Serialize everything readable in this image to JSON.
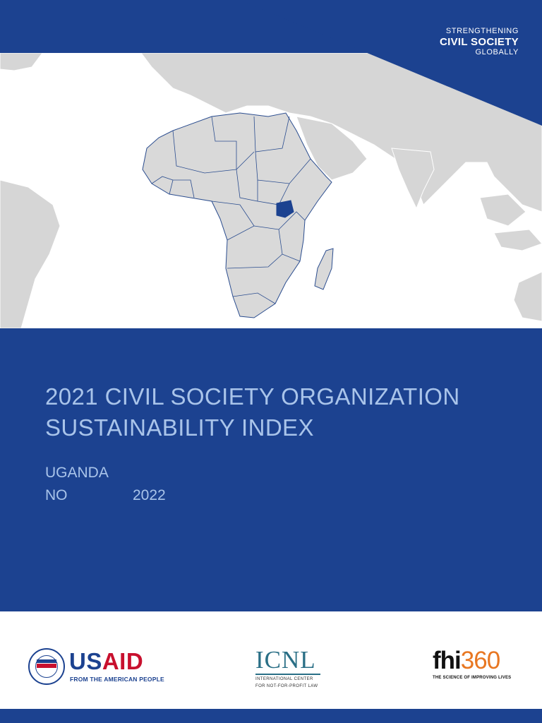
{
  "tagline": {
    "line1": "STRENGTHENING",
    "line2": "CIVIL SOCIETY",
    "line3": "GLOBALLY"
  },
  "map": {
    "highlighted_country": "Uganda",
    "highlight_color": "#1c4290",
    "land_color": "#d6d6d6",
    "africa_color": "#d9d9d9",
    "border_color": "#2b4d8f"
  },
  "cover": {
    "title": "2021 CIVIL SOCIETY ORGANIZATION SUSTAINABILITY INDEX",
    "country": "UGANDA",
    "month": "NO",
    "year": "2022"
  },
  "logos": {
    "usaid": {
      "name": "USAID",
      "name_part1": "US",
      "name_part2": "AID",
      "tagline": "FROM THE AMERICAN PEOPLE"
    },
    "icnl": {
      "name": "ICNL",
      "tagline_line1": "INTERNATIONAL CENTER",
      "tagline_line2": "FOR NOT-FOR-PROFIT LAW"
    },
    "fhi": {
      "name_part1": "fhi",
      "name_part2": "360",
      "tagline": "THE SCIENCE OF IMPROVING LIVES"
    }
  },
  "colors": {
    "brand_blue": "#1c4290",
    "title_blue": "#a9c4ea",
    "usaid_red": "#c8102e",
    "fhi_orange": "#e87722",
    "icnl_teal": "#2a6f86"
  }
}
